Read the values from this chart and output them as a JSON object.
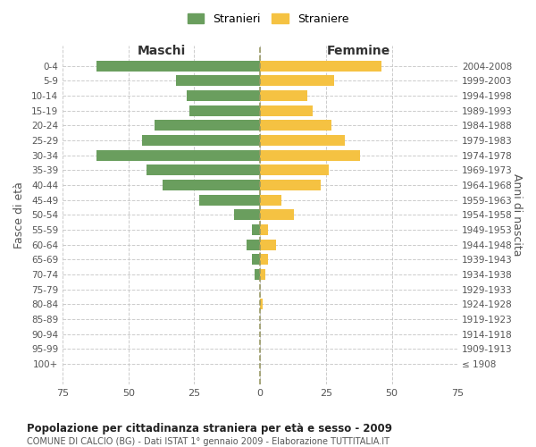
{
  "age_groups": [
    "100+",
    "95-99",
    "90-94",
    "85-89",
    "80-84",
    "75-79",
    "70-74",
    "65-69",
    "60-64",
    "55-59",
    "50-54",
    "45-49",
    "40-44",
    "35-39",
    "30-34",
    "25-29",
    "20-24",
    "15-19",
    "10-14",
    "5-9",
    "0-4"
  ],
  "birth_years": [
    "≤ 1908",
    "1909-1913",
    "1914-1918",
    "1919-1923",
    "1924-1928",
    "1929-1933",
    "1934-1938",
    "1939-1943",
    "1944-1948",
    "1949-1953",
    "1954-1958",
    "1959-1963",
    "1964-1968",
    "1969-1973",
    "1974-1978",
    "1979-1983",
    "1984-1988",
    "1989-1993",
    "1994-1998",
    "1999-2003",
    "2004-2008"
  ],
  "males": [
    0,
    0,
    0,
    0,
    0,
    0,
    2,
    3,
    5,
    3,
    10,
    23,
    37,
    43,
    62,
    45,
    40,
    27,
    28,
    32,
    62
  ],
  "females": [
    0,
    0,
    0,
    0,
    1,
    0,
    2,
    3,
    6,
    3,
    13,
    8,
    23,
    26,
    38,
    32,
    27,
    20,
    18,
    28,
    46
  ],
  "male_color": "#6a9e5e",
  "female_color": "#f5c242",
  "male_label": "Stranieri",
  "female_label": "Straniere",
  "title": "Popolazione per cittadinanza straniera per età e sesso - 2009",
  "subtitle": "COMUNE DI CALCIO (BG) - Dati ISTAT 1° gennaio 2009 - Elaborazione TUTTITALIA.IT",
  "xlabel_left": "Maschi",
  "xlabel_right": "Femmine",
  "ylabel_left": "Fasce di età",
  "ylabel_right": "Anni di nascita",
  "xlim": 75,
  "background_color": "#ffffff",
  "grid_color": "#cccccc"
}
